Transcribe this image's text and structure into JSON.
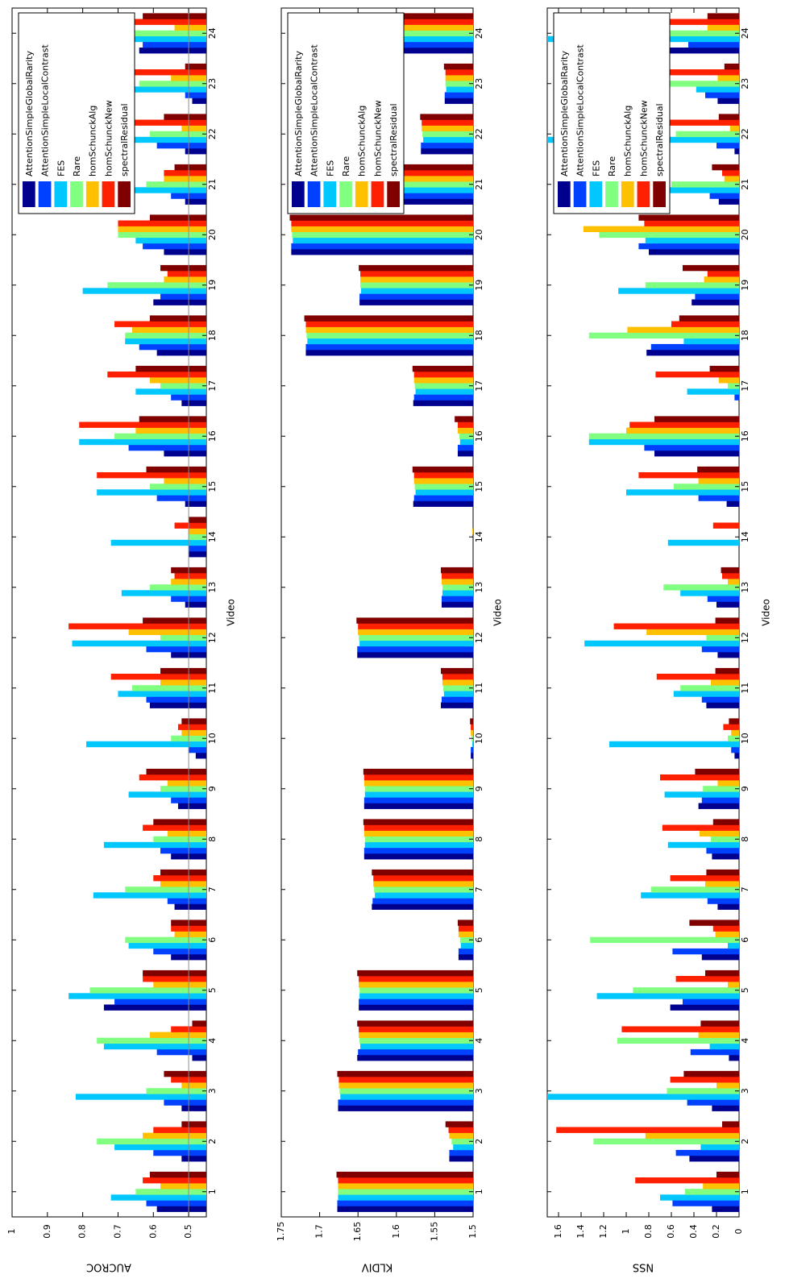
{
  "chart_data": [
    {
      "type": "bar",
      "ylabel": "AUCROC",
      "xlabel": "Video",
      "ylim": [
        0.45,
        1.0
      ],
      "yticks": [
        0.5,
        0.6,
        0.7,
        0.8,
        0.9,
        1
      ],
      "ytick_labels": [
        "0.5",
        "0.6",
        "0.7",
        "0.8",
        "0.9",
        "1"
      ],
      "reference_line": 0.5,
      "legend_position": "top-right",
      "categories": [
        "1",
        "2",
        "3",
        "4",
        "5",
        "6",
        "7",
        "8",
        "9",
        "10",
        "11",
        "12",
        "13",
        "14",
        "15",
        "16",
        "17",
        "18",
        "19",
        "20",
        "21",
        "22",
        "23",
        "24"
      ],
      "series": [
        {
          "name": "AttentionSimpleGlobalRarity",
          "values": [
            0.59,
            0.52,
            0.52,
            0.49,
            0.74,
            0.55,
            0.54,
            0.55,
            0.53,
            0.48,
            0.61,
            0.55,
            0.51,
            0.5,
            0.51,
            0.57,
            0.52,
            0.59,
            0.6,
            0.57,
            0.51,
            0.51,
            0.49,
            0.64
          ]
        },
        {
          "name": "AttentionSimpleLocalContrast",
          "values": [
            0.62,
            0.6,
            0.57,
            0.59,
            0.71,
            0.6,
            0.56,
            0.58,
            0.55,
            0.5,
            0.62,
            0.62,
            0.55,
            0.5,
            0.59,
            0.67,
            0.55,
            0.64,
            0.58,
            0.63,
            0.55,
            0.59,
            0.51,
            0.63
          ]
        },
        {
          "name": "FES",
          "values": [
            0.72,
            0.71,
            0.82,
            0.74,
            0.84,
            0.67,
            0.77,
            0.74,
            0.67,
            0.79,
            0.7,
            0.83,
            0.69,
            0.72,
            0.76,
            0.81,
            0.65,
            0.68,
            0.8,
            0.65,
            0.77,
            0.85,
            0.74,
            0.85
          ]
        },
        {
          "name": "Rare",
          "values": [
            0.65,
            0.76,
            0.62,
            0.76,
            0.78,
            0.68,
            0.68,
            0.6,
            0.58,
            0.55,
            0.66,
            0.58,
            0.61,
            0.5,
            0.61,
            0.71,
            0.58,
            0.68,
            0.73,
            0.7,
            0.62,
            0.61,
            0.64,
            0.75
          ]
        },
        {
          "name": "homSchunckAlg",
          "values": [
            0.58,
            0.63,
            0.52,
            0.61,
            0.6,
            0.54,
            0.58,
            0.56,
            0.56,
            0.52,
            0.58,
            0.67,
            0.55,
            0.5,
            0.57,
            0.65,
            0.61,
            0.66,
            0.57,
            0.7,
            0.57,
            0.52,
            0.55,
            0.54
          ]
        },
        {
          "name": "homSchunckNew",
          "values": [
            0.63,
            0.6,
            0.55,
            0.55,
            0.63,
            0.55,
            0.6,
            0.63,
            0.64,
            0.53,
            0.72,
            0.84,
            0.54,
            0.54,
            0.76,
            0.81,
            0.73,
            0.71,
            0.56,
            0.7,
            0.57,
            0.73,
            0.7,
            0.81
          ]
        },
        {
          "name": "spectralResidual",
          "values": [
            0.61,
            0.52,
            0.57,
            0.49,
            0.63,
            0.55,
            0.58,
            0.6,
            0.62,
            0.52,
            0.58,
            0.63,
            0.55,
            0.5,
            0.62,
            0.64,
            0.65,
            0.61,
            0.58,
            0.61,
            0.54,
            0.57,
            0.51,
            0.63
          ]
        }
      ]
    },
    {
      "type": "bar",
      "ylabel": "KLDIV",
      "xlabel": "Video",
      "ylim": [
        1.5,
        1.75
      ],
      "yticks": [
        1.5,
        1.55,
        1.6,
        1.65,
        1.7,
        1.75
      ],
      "ytick_labels": [
        "1.5",
        "1.55",
        "1.6",
        "1.65",
        "1.7",
        "1.75"
      ],
      "legend_position": "top-right",
      "categories": [
        "1",
        "2",
        "3",
        "4",
        "5",
        "6",
        "7",
        "8",
        "9",
        "10",
        "11",
        "12",
        "13",
        "14",
        "15",
        "16",
        "17",
        "18",
        "19",
        "20",
        "21",
        "22",
        "23",
        "24"
      ],
      "series": [
        {
          "name": "AttentionSimpleGlobalRarity",
          "values": [
            1.677,
            1.531,
            1.676,
            1.651,
            1.649,
            1.519,
            1.632,
            1.642,
            1.642,
            1.503,
            1.542,
            1.651,
            1.541,
            1.499,
            1.578,
            1.52,
            1.578,
            1.718,
            1.648,
            1.737,
            1.603,
            1.568,
            1.537,
            1.693
          ]
        },
        {
          "name": "AttentionSimpleLocalContrast",
          "values": [
            1.677,
            1.531,
            1.676,
            1.65,
            1.649,
            1.519,
            1.631,
            1.642,
            1.642,
            1.503,
            1.541,
            1.651,
            1.541,
            1.499,
            1.577,
            1.52,
            1.577,
            1.718,
            1.648,
            1.737,
            1.603,
            1.568,
            1.537,
            1.693
          ]
        },
        {
          "name": "FES",
          "values": [
            1.676,
            1.526,
            1.673,
            1.647,
            1.648,
            1.516,
            1.628,
            1.641,
            1.641,
            1.501,
            1.538,
            1.648,
            1.54,
            1.499,
            1.575,
            1.517,
            1.575,
            1.716,
            1.646,
            1.735,
            1.601,
            1.565,
            1.535,
            1.691
          ]
        },
        {
          "name": "Rare",
          "values": [
            1.676,
            1.528,
            1.674,
            1.648,
            1.648,
            1.517,
            1.629,
            1.641,
            1.641,
            1.502,
            1.539,
            1.649,
            1.54,
            1.499,
            1.576,
            1.518,
            1.576,
            1.717,
            1.647,
            1.736,
            1.602,
            1.566,
            1.536,
            1.692
          ]
        },
        {
          "name": "homSchunckAlg",
          "values": [
            1.676,
            1.531,
            1.675,
            1.649,
            1.649,
            1.519,
            1.63,
            1.642,
            1.642,
            1.503,
            1.54,
            1.65,
            1.541,
            1.501,
            1.577,
            1.52,
            1.577,
            1.718,
            1.647,
            1.737,
            1.602,
            1.567,
            1.536,
            1.697
          ]
        },
        {
          "name": "homSchunckNew",
          "values": [
            1.676,
            1.532,
            1.675,
            1.649,
            1.649,
            1.519,
            1.63,
            1.642,
            1.642,
            1.503,
            1.54,
            1.65,
            1.541,
            1.499,
            1.577,
            1.52,
            1.577,
            1.718,
            1.647,
            1.737,
            1.602,
            1.567,
            1.536,
            1.694
          ]
        },
        {
          "name": "spectralResidual",
          "values": [
            1.678,
            1.536,
            1.677,
            1.651,
            1.651,
            1.52,
            1.632,
            1.643,
            1.643,
            1.504,
            1.542,
            1.652,
            1.542,
            1.499,
            1.579,
            1.524,
            1.579,
            1.72,
            1.649,
            1.739,
            1.603,
            1.569,
            1.538,
            1.695
          ]
        }
      ]
    },
    {
      "type": "bar",
      "ylabel": "NSS",
      "xlabel": "Video",
      "ylim": [
        0,
        1.7
      ],
      "yticks": [
        0,
        0.2,
        0.4,
        0.6,
        0.8,
        1,
        1.2,
        1.4,
        1.6
      ],
      "ytick_labels": [
        "0",
        "0.2",
        "0.4",
        "0.6",
        "0.8",
        "1",
        "1.2",
        "1.4",
        "1.6"
      ],
      "legend_position": "top-right",
      "categories": [
        "1",
        "2",
        "3",
        "4",
        "5",
        "6",
        "7",
        "8",
        "9",
        "10",
        "11",
        "12",
        "13",
        "14",
        "15",
        "16",
        "17",
        "18",
        "19",
        "20",
        "21",
        "22",
        "23",
        "24"
      ],
      "series": [
        {
          "name": "AttentionSimpleGlobalRarity",
          "values": [
            0.24,
            0.44,
            0.24,
            0.09,
            0.61,
            0.33,
            0.19,
            0.24,
            0.36,
            0.04,
            0.29,
            0.19,
            0.2,
            0.0,
            0.11,
            0.75,
            0.0,
            0.82,
            0.42,
            0.8,
            0.18,
            0.04,
            0.19,
            0.62
          ]
        },
        {
          "name": "AttentionSimpleLocalContrast",
          "values": [
            0.59,
            0.56,
            0.46,
            0.43,
            0.5,
            0.59,
            0.28,
            0.29,
            0.33,
            0.07,
            0.33,
            0.33,
            0.28,
            0.0,
            0.36,
            0.84,
            0.04,
            0.78,
            0.39,
            0.89,
            0.26,
            0.2,
            0.3,
            0.45
          ]
        },
        {
          "name": "FES",
          "values": [
            0.7,
            0.34,
            1.7,
            0.26,
            1.26,
            0.1,
            0.87,
            0.63,
            0.66,
            1.15,
            0.58,
            1.37,
            0.52,
            0.63,
            1.0,
            1.33,
            0.46,
            0.49,
            1.07,
            0.83,
            1.28,
            1.7,
            0.38,
            1.7
          ]
        },
        {
          "name": "Rare",
          "values": [
            0.48,
            1.29,
            0.64,
            1.08,
            0.94,
            1.32,
            0.78,
            0.25,
            0.32,
            0.1,
            0.52,
            0.29,
            0.67,
            0.0,
            0.58,
            1.33,
            0.1,
            1.33,
            0.83,
            1.24,
            0.6,
            0.56,
            0.75,
            1.04
          ]
        },
        {
          "name": "homSchunckAlg",
          "values": [
            0.32,
            0.83,
            0.2,
            0.36,
            0.1,
            0.21,
            0.3,
            0.35,
            0.19,
            0.07,
            0.25,
            0.82,
            0.1,
            0.0,
            0.36,
            1.0,
            0.18,
            0.99,
            0.31,
            1.38,
            0.13,
            0.08,
            0.19,
            0.28
          ]
        },
        {
          "name": "homSchunckNew",
          "values": [
            0.92,
            1.62,
            0.61,
            1.04,
            0.56,
            0.23,
            0.61,
            0.68,
            0.7,
            0.14,
            0.73,
            1.11,
            0.15,
            0.23,
            0.89,
            0.97,
            0.74,
            0.6,
            0.28,
            0.84,
            0.15,
            0.91,
            0.72,
            0.95
          ]
        },
        {
          "name": "spectralResidual",
          "values": [
            0.2,
            0.15,
            0.49,
            0.34,
            0.3,
            0.44,
            0.29,
            0.23,
            0.39,
            0.09,
            0.21,
            0.21,
            0.16,
            0.0,
            0.37,
            0.75,
            0.26,
            0.53,
            0.5,
            0.89,
            0.24,
            0.18,
            0.13,
            0.28
          ]
        }
      ]
    }
  ],
  "colors": {
    "series": [
      "#00008f",
      "#0040ff",
      "#00c8ff",
      "#80ff80",
      "#ffc000",
      "#ff2000",
      "#800000"
    ],
    "reference_line": "#8c8c8c"
  }
}
